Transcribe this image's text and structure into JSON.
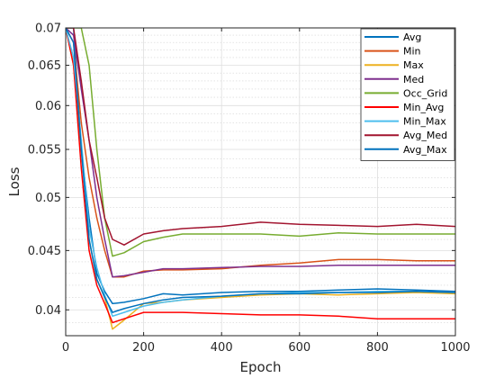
{
  "chart_data": {
    "type": "line",
    "xlabel": "Epoch",
    "ylabel": "Loss",
    "xlim": [
      0,
      1000
    ],
    "ylim": [
      0.038,
      0.07
    ],
    "y_scale": "log",
    "grid": true,
    "minor_grid": true,
    "legend_position": "top-right",
    "x_ticks": [
      0,
      200,
      400,
      600,
      800,
      1000
    ],
    "x_tick_labels": [
      "0",
      "200",
      "400",
      "600",
      "800",
      "1000"
    ],
    "y_ticks": [
      0.04,
      0.045,
      0.05,
      0.055,
      0.06,
      0.065,
      0.07
    ],
    "y_tick_labels": [
      "0.04",
      "0.045",
      "0.05",
      "0.055",
      "0.06",
      "0.065",
      "0.07"
    ],
    "y_minor_ticks": [
      0.039,
      0.041,
      0.042,
      0.043,
      0.044,
      0.046,
      0.047,
      0.048,
      0.049,
      0.051,
      0.052,
      0.053,
      0.054,
      0.056,
      0.057,
      0.058,
      0.059,
      0.061,
      0.062,
      0.063,
      0.064,
      0.066,
      0.067,
      0.068,
      0.069
    ],
    "x": [
      0,
      20,
      40,
      60,
      80,
      100,
      120,
      150,
      200,
      250,
      300,
      400,
      500,
      600,
      700,
      800,
      900,
      1000
    ],
    "series": [
      {
        "name": "Avg",
        "color": "#0072BD",
        "values": [
          0.07,
          0.07,
          0.055,
          0.048,
          0.043,
          0.0415,
          0.0405,
          0.0406,
          0.0409,
          0.0413,
          0.0412,
          0.0414,
          0.0415,
          0.0415,
          0.0416,
          0.0417,
          0.0416,
          0.0415
        ]
      },
      {
        "name": "Min",
        "color": "#D95319",
        "values": [
          0.07,
          0.068,
          0.058,
          0.052,
          0.048,
          0.045,
          0.0427,
          0.0427,
          0.0432,
          0.0433,
          0.0433,
          0.0434,
          0.0437,
          0.0439,
          0.0442,
          0.0442,
          0.0441,
          0.0441
        ]
      },
      {
        "name": "Max",
        "color": "#EDB120",
        "values": [
          0.07,
          0.065,
          0.055,
          0.046,
          0.0425,
          0.041,
          0.0385,
          0.0392,
          0.0405,
          0.0406,
          0.0408,
          0.041,
          0.0412,
          0.0413,
          0.0412,
          0.0413,
          0.0414,
          0.0413
        ]
      },
      {
        "name": "Med",
        "color": "#7E2F8E",
        "values": [
          0.07,
          0.069,
          0.062,
          0.056,
          0.05,
          0.046,
          0.0427,
          0.0428,
          0.0431,
          0.0434,
          0.0434,
          0.0435,
          0.0436,
          0.0436,
          0.0437,
          0.0437,
          0.0437,
          0.0437
        ]
      },
      {
        "name": "Occ_Grid",
        "color": "#77AC30",
        "values": [
          0.07,
          0.07,
          0.07,
          0.065,
          0.055,
          0.048,
          0.0445,
          0.0448,
          0.0458,
          0.0462,
          0.0465,
          0.0465,
          0.0465,
          0.0463,
          0.0466,
          0.0465,
          0.0465,
          0.0465
        ]
      },
      {
        "name": "Min_Avg",
        "color": "#FF0000",
        "values": [
          0.07,
          0.065,
          0.053,
          0.045,
          0.042,
          0.0405,
          0.039,
          0.0393,
          0.0398,
          0.0398,
          0.0398,
          0.0397,
          0.0396,
          0.0396,
          0.0395,
          0.0393,
          0.0393,
          0.0393
        ]
      },
      {
        "name": "Min_Max",
        "color": "#4DBEEE",
        "values": [
          0.07,
          0.066,
          0.056,
          0.047,
          0.0435,
          0.0412,
          0.0395,
          0.0398,
          0.0403,
          0.0406,
          0.0408,
          0.0411,
          0.0413,
          0.0414,
          0.0414,
          0.0415,
          0.0415,
          0.0414
        ]
      },
      {
        "name": "Avg_Med",
        "color": "#A2142F",
        "values": [
          0.07,
          0.07,
          0.063,
          0.056,
          0.052,
          0.048,
          0.046,
          0.0455,
          0.0465,
          0.0468,
          0.047,
          0.0472,
          0.0476,
          0.0474,
          0.0473,
          0.0472,
          0.0474,
          0.0472
        ]
      },
      {
        "name": "Avg_Max",
        "color": "#0072BD",
        "values": [
          0.07,
          0.068,
          0.055,
          0.046,
          0.0425,
          0.041,
          0.0398,
          0.0401,
          0.0405,
          0.0408,
          0.041,
          0.0411,
          0.0413,
          0.0413,
          0.0414,
          0.0414,
          0.0415,
          0.0414
        ]
      }
    ]
  }
}
